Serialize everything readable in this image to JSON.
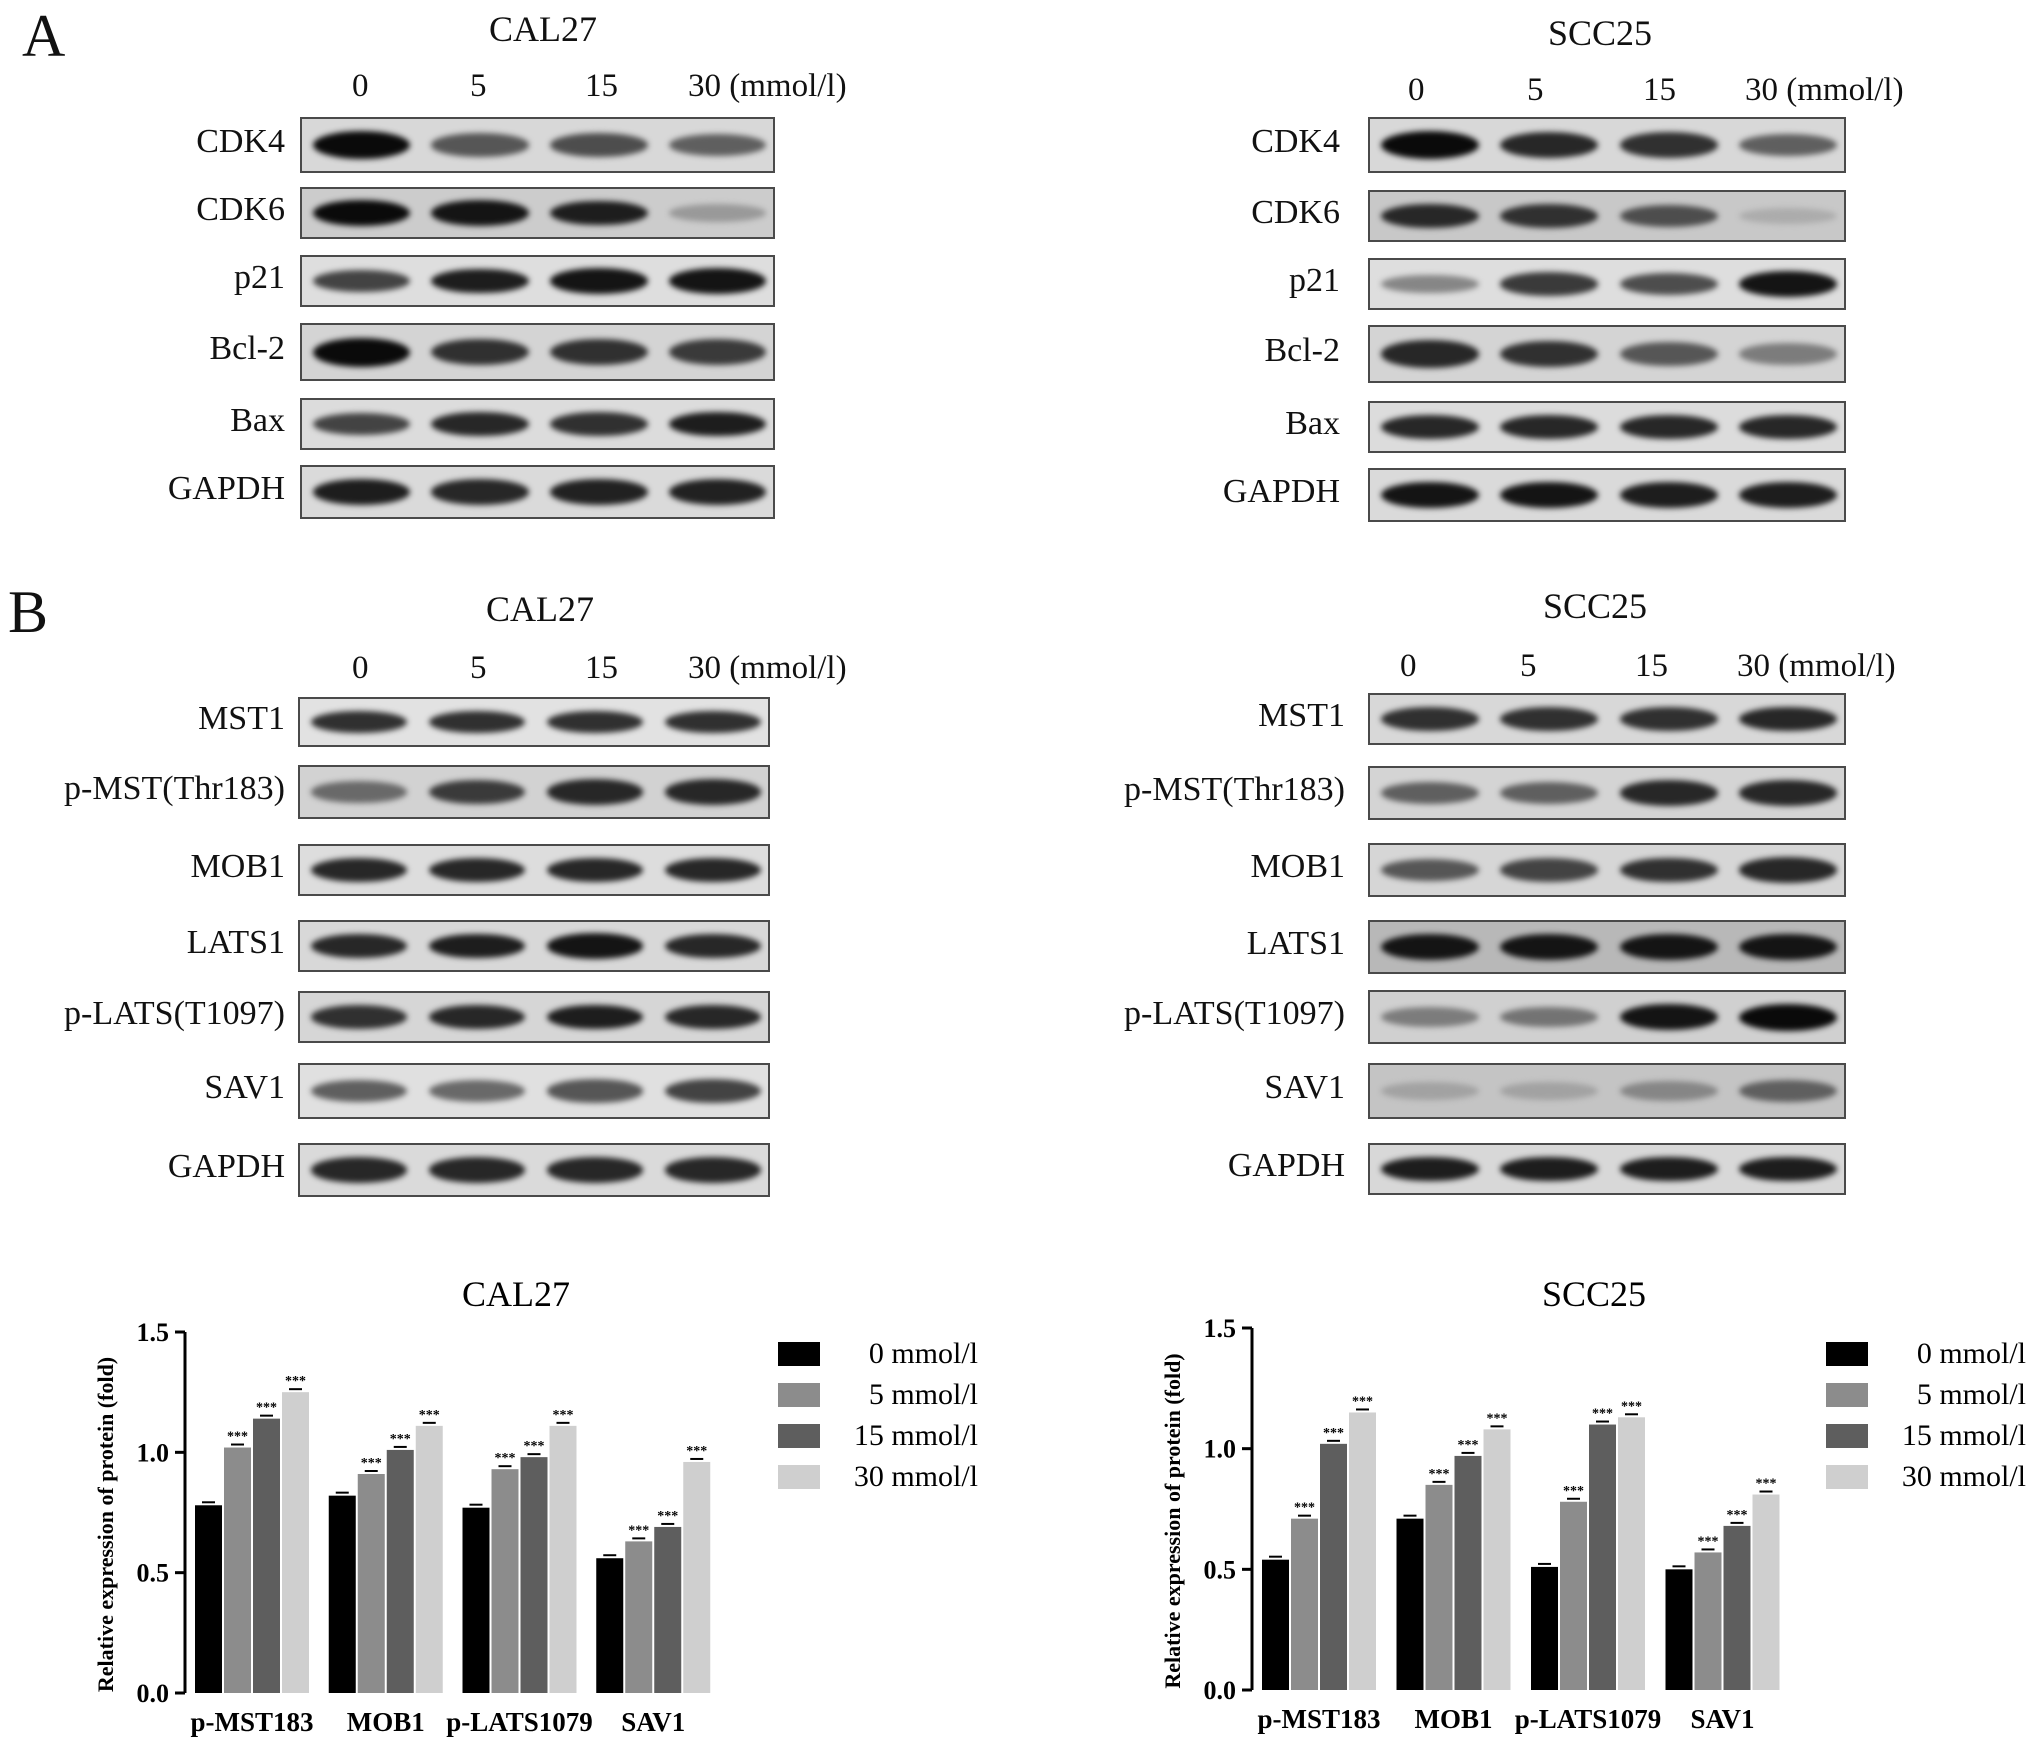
{
  "panels": {
    "A": {
      "letter": "A"
    },
    "B": {
      "letter": "B"
    }
  },
  "lanes": [
    "0",
    "5",
    "15",
    "30 (mmol/l)"
  ],
  "blots": {
    "A_CAL27": {
      "title": "CAL27",
      "rows": [
        {
          "label": "CDK4",
          "intensity": [
            1.0,
            0.6,
            0.65,
            0.55
          ],
          "bg": "#d8d8d8"
        },
        {
          "label": "CDK6",
          "intensity": [
            1.0,
            0.95,
            0.9,
            0.25
          ],
          "bg": "#cccccc"
        },
        {
          "label": "p21",
          "intensity": [
            0.7,
            0.9,
            0.95,
            0.95
          ],
          "bg": "#dedede"
        },
        {
          "label": "Bcl-2",
          "intensity": [
            1.0,
            0.8,
            0.8,
            0.75
          ],
          "bg": "#d4d4d4"
        },
        {
          "label": "Bax",
          "intensity": [
            0.7,
            0.85,
            0.8,
            0.9
          ],
          "bg": "#dcdcdc"
        },
        {
          "label": "GAPDH",
          "intensity": [
            0.9,
            0.85,
            0.88,
            0.88
          ],
          "bg": "#dadada"
        }
      ]
    },
    "A_SCC25": {
      "title": "SCC25",
      "rows": [
        {
          "label": "CDK4",
          "intensity": [
            1.0,
            0.85,
            0.8,
            0.55
          ],
          "bg": "#d8d8d8"
        },
        {
          "label": "CDK6",
          "intensity": [
            0.85,
            0.8,
            0.65,
            0.15
          ],
          "bg": "#c8c8c8"
        },
        {
          "label": "p21",
          "intensity": [
            0.35,
            0.75,
            0.65,
            0.95
          ],
          "bg": "#dedede"
        },
        {
          "label": "Bcl-2",
          "intensity": [
            0.85,
            0.8,
            0.6,
            0.4
          ],
          "bg": "#d4d4d4"
        },
        {
          "label": "Bax",
          "intensity": [
            0.85,
            0.85,
            0.85,
            0.85
          ],
          "bg": "#dcdcdc"
        },
        {
          "label": "GAPDH",
          "intensity": [
            0.95,
            0.95,
            0.9,
            0.9
          ],
          "bg": "#dadada"
        }
      ]
    },
    "B_CAL27": {
      "title": "CAL27",
      "rows": [
        {
          "label": "MST1",
          "intensity": [
            0.8,
            0.8,
            0.8,
            0.8
          ],
          "bg": "#e2e2e2"
        },
        {
          "label": "p-MST(Thr183)",
          "intensity": [
            0.5,
            0.75,
            0.85,
            0.85
          ],
          "bg": "#d2d2d2"
        },
        {
          "label": "MOB1",
          "intensity": [
            0.85,
            0.85,
            0.85,
            0.85
          ],
          "bg": "#dddddd"
        },
        {
          "label": "LATS1",
          "intensity": [
            0.85,
            0.9,
            0.95,
            0.85
          ],
          "bg": "#d8d8d8"
        },
        {
          "label": "p-LATS(T1097)",
          "intensity": [
            0.8,
            0.85,
            0.9,
            0.85
          ],
          "bg": "#d6d6d6"
        },
        {
          "label": "SAV1",
          "intensity": [
            0.55,
            0.5,
            0.6,
            0.7
          ],
          "bg": "#e0e0e0"
        },
        {
          "label": "GAPDH",
          "intensity": [
            0.85,
            0.85,
            0.85,
            0.85
          ],
          "bg": "#dadada"
        }
      ]
    },
    "B_SCC25": {
      "title": "SCC25",
      "rows": [
        {
          "label": "MST1",
          "intensity": [
            0.8,
            0.8,
            0.8,
            0.85
          ],
          "bg": "#d8d8d8"
        },
        {
          "label": "p-MST(Thr183)",
          "intensity": [
            0.55,
            0.55,
            0.85,
            0.85
          ],
          "bg": "#d4d4d4"
        },
        {
          "label": "MOB1",
          "intensity": [
            0.6,
            0.7,
            0.8,
            0.85
          ],
          "bg": "#d6d6d6"
        },
        {
          "label": "LATS1",
          "intensity": [
            0.95,
            0.95,
            0.95,
            0.95
          ],
          "bg": "#b8b8b8"
        },
        {
          "label": "p-LATS(T1097)",
          "intensity": [
            0.4,
            0.45,
            0.95,
            1.0
          ],
          "bg": "#d0d0d0"
        },
        {
          "label": "SAV1",
          "intensity": [
            0.2,
            0.2,
            0.35,
            0.55
          ],
          "bg": "#c4c4c4"
        },
        {
          "label": "GAPDH",
          "intensity": [
            0.9,
            0.9,
            0.9,
            0.9
          ],
          "bg": "#d8d8d8"
        }
      ]
    }
  },
  "chart_data": [
    {
      "type": "bar",
      "title": "CAL27",
      "ylabel": "Relative expression of protein (fold)",
      "ylim": [
        0,
        1.5
      ],
      "yticks": [
        "0.0",
        "0.5",
        "1.0",
        "1.5"
      ],
      "categories": [
        "p-MST183",
        "MOB1",
        "p-LATS1079",
        "SAV1"
      ],
      "series": [
        {
          "name": "0 mmol/l",
          "color": "#000000",
          "values": [
            0.78,
            0.82,
            0.77,
            0.56
          ]
        },
        {
          "name": "5 mmol/l",
          "color": "#8c8c8c",
          "values": [
            1.02,
            0.91,
            0.93,
            0.63
          ]
        },
        {
          "name": "15 mmol/l",
          "color": "#5e5e5e",
          "values": [
            1.14,
            1.01,
            0.98,
            0.69
          ]
        },
        {
          "name": "30 mmol/l",
          "color": "#cfcfcf",
          "values": [
            1.25,
            1.11,
            1.11,
            0.96
          ]
        }
      ],
      "annotation": "***"
    },
    {
      "type": "bar",
      "title": "SCC25",
      "ylabel": "Relative expression of protein (fold)",
      "ylim": [
        0,
        1.5
      ],
      "yticks": [
        "0.0",
        "0.5",
        "1.0",
        "1.5"
      ],
      "categories": [
        "p-MST183",
        "MOB1",
        "p-LATS1079",
        "SAV1"
      ],
      "series": [
        {
          "name": "0 mmol/l",
          "color": "#000000",
          "values": [
            0.54,
            0.71,
            0.51,
            0.5
          ]
        },
        {
          "name": "5 mmol/l",
          "color": "#8c8c8c",
          "values": [
            0.71,
            0.85,
            0.78,
            0.57
          ]
        },
        {
          "name": "15 mmol/l",
          "color": "#5e5e5e",
          "values": [
            1.02,
            0.97,
            1.1,
            0.68
          ]
        },
        {
          "name": "30 mmol/l",
          "color": "#cfcfcf",
          "values": [
            1.15,
            1.08,
            1.13,
            0.81
          ]
        }
      ],
      "annotation": "***"
    }
  ]
}
